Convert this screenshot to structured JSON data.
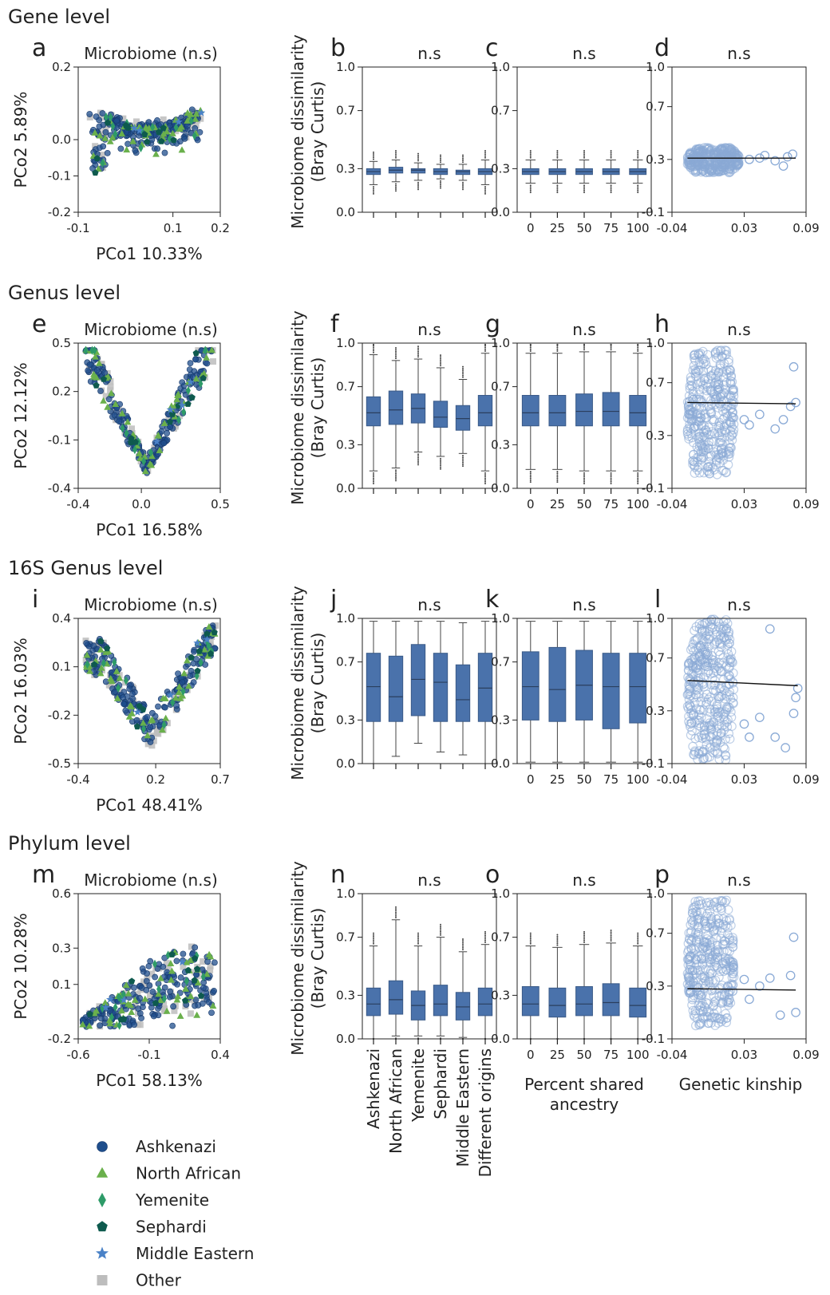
{
  "colors": {
    "Ashkenazi": "#1f4e8c",
    "North African": "#6ab04c",
    "Yemenite": "#2e9b68",
    "Sephardi": "#0e5a4e",
    "Middle Eastern": "#4a82c7",
    "Other": "#bdbdbd",
    "box": "#4a72ab",
    "kinship_point": "#8aaad6"
  },
  "legend": {
    "entries": [
      {
        "label": "Ashkenazi",
        "marker": "circle"
      },
      {
        "label": "North African",
        "marker": "triangle"
      },
      {
        "label": "Yemenite",
        "marker": "diamond"
      },
      {
        "label": "Sephardi",
        "marker": "pentagon"
      },
      {
        "label": "Middle Eastern",
        "marker": "star"
      },
      {
        "label": "Other",
        "marker": "square"
      }
    ]
  },
  "shared": {
    "ylabel_line1": "Microbiome dissimilarity",
    "ylabel_line2": "(Bray Curtis)",
    "origin_categories": [
      "Ashkenazi",
      "North African",
      "Yemenite",
      "Sephardi",
      "Middle Eastern",
      "Different origins"
    ],
    "ancestry_categories": [
      "0",
      "25",
      "50",
      "75",
      "100"
    ],
    "ancestry_xlabel_line1": "Percent shared",
    "ancestry_xlabel_line2": "ancestry",
    "kinship_xlabel": "Genetic kinship"
  },
  "chart_data": [
    {
      "row_title": "Gene level",
      "pcoa": {
        "type": "scatter",
        "label": "a",
        "title": "Microbiome (n.s)",
        "xlabel": "PCo1 10.33%",
        "ylabel": "PCo2 5.89%",
        "xlim": [
          -0.1,
          0.2
        ],
        "ylim": [
          -0.2,
          0.2
        ],
        "xticks": [
          "-0.1",
          "0.1",
          "0.2"
        ],
        "xtick_values": [
          -0.1,
          0.1,
          0.2
        ],
        "yticks": [
          "-0.2",
          "-0.1",
          "0.0",
          "0.2"
        ],
        "ytick_values": [
          -0.2,
          -0.1,
          0.0,
          0.2
        ],
        "shape": "gene"
      },
      "origin": {
        "type": "box",
        "label": "b",
        "title": "n.s",
        "ylim": [
          0.0,
          1.0
        ],
        "yticks": [
          "0.0",
          "0.3",
          "0.7",
          "1.0"
        ],
        "ytick_values": [
          0.0,
          0.3,
          0.7,
          1.0
        ],
        "boxes": [
          {
            "q1": 0.26,
            "med": 0.28,
            "q3": 0.3,
            "lo": 0.19,
            "hi": 0.35
          },
          {
            "q1": 0.27,
            "med": 0.29,
            "q3": 0.31,
            "lo": 0.21,
            "hi": 0.36
          },
          {
            "q1": 0.27,
            "med": 0.29,
            "q3": 0.3,
            "lo": 0.22,
            "hi": 0.34
          },
          {
            "q1": 0.26,
            "med": 0.28,
            "q3": 0.3,
            "lo": 0.23,
            "hi": 0.33
          },
          {
            "q1": 0.26,
            "med": 0.28,
            "q3": 0.29,
            "lo": 0.22,
            "hi": 0.33
          },
          {
            "q1": 0.26,
            "med": 0.28,
            "q3": 0.3,
            "lo": 0.19,
            "hi": 0.36
          }
        ]
      },
      "ancestry": {
        "type": "box",
        "label": "c",
        "title": "n.s",
        "ylim": [
          0.0,
          1.0
        ],
        "yticks": [
          "0.0",
          "0.3",
          "0.7",
          "1.0"
        ],
        "ytick_values": [
          0.0,
          0.3,
          0.7,
          1.0
        ],
        "boxes": [
          {
            "q1": 0.26,
            "med": 0.28,
            "q3": 0.3,
            "lo": 0.2,
            "hi": 0.36
          },
          {
            "q1": 0.26,
            "med": 0.28,
            "q3": 0.3,
            "lo": 0.2,
            "hi": 0.36
          },
          {
            "q1": 0.26,
            "med": 0.28,
            "q3": 0.3,
            "lo": 0.2,
            "hi": 0.36
          },
          {
            "q1": 0.26,
            "med": 0.28,
            "q3": 0.3,
            "lo": 0.2,
            "hi": 0.36
          },
          {
            "q1": 0.26,
            "med": 0.28,
            "q3": 0.3,
            "lo": 0.2,
            "hi": 0.36
          }
        ]
      },
      "kinship": {
        "type": "scatter",
        "label": "d",
        "title": "n.s",
        "xlim": [
          -0.04,
          0.09
        ],
        "ylim": [
          -0.1,
          1.0
        ],
        "xticks": [
          "-0.04",
          "0.03",
          "0.09"
        ],
        "xtick_values": [
          -0.04,
          0.03,
          0.09
        ],
        "yticks": [
          "-0.1",
          "0.3",
          "0.7",
          "1.0"
        ],
        "ytick_values": [
          -0.1,
          0.3,
          0.7,
          1.0
        ],
        "cloud": {
          "x": [
            -0.025,
            0.025
          ],
          "y": [
            0.2,
            0.39
          ]
        },
        "outliers": [
          [
            0.035,
            0.3
          ],
          [
            0.045,
            0.31
          ],
          [
            0.05,
            0.33
          ],
          [
            0.06,
            0.29
          ],
          [
            0.068,
            0.25
          ],
          [
            0.072,
            0.32
          ],
          [
            0.077,
            0.34
          ]
        ],
        "fit": [
          [
            -0.025,
            0.31
          ],
          [
            0.08,
            0.31
          ]
        ]
      }
    },
    {
      "row_title": "Genus level",
      "pcoa": {
        "type": "scatter",
        "label": "e",
        "title": "Microbiome (n.s)",
        "xlabel": "PCo1 16.58%",
        "ylabel": "PCo2 12.12%",
        "xlim": [
          -0.4,
          0.5
        ],
        "ylim": [
          -0.4,
          0.5
        ],
        "xticks": [
          "-0.4",
          "0.0",
          "0.5"
        ],
        "xtick_values": [
          -0.4,
          0.0,
          0.5
        ],
        "yticks": [
          "-0.4",
          "-0.1",
          "0.2",
          "0.5"
        ],
        "ytick_values": [
          -0.4,
          -0.1,
          0.2,
          0.5
        ],
        "shape": "v"
      },
      "origin": {
        "type": "box",
        "label": "f",
        "title": "n.s",
        "ylim": [
          0.0,
          1.0
        ],
        "yticks": [
          "0.0",
          "0.3",
          "0.7",
          "1.0"
        ],
        "ytick_values": [
          0.0,
          0.3,
          0.7,
          1.0
        ],
        "boxes": [
          {
            "q1": 0.43,
            "med": 0.52,
            "q3": 0.63,
            "lo": 0.12,
            "hi": 0.92
          },
          {
            "q1": 0.44,
            "med": 0.54,
            "q3": 0.67,
            "lo": 0.14,
            "hi": 0.88
          },
          {
            "q1": 0.45,
            "med": 0.55,
            "q3": 0.65,
            "lo": 0.25,
            "hi": 0.89
          },
          {
            "q1": 0.42,
            "med": 0.49,
            "q3": 0.6,
            "lo": 0.22,
            "hi": 0.83
          },
          {
            "q1": 0.4,
            "med": 0.48,
            "q3": 0.57,
            "lo": 0.24,
            "hi": 0.75
          },
          {
            "q1": 0.43,
            "med": 0.52,
            "q3": 0.64,
            "lo": 0.12,
            "hi": 0.93
          }
        ]
      },
      "ancestry": {
        "type": "box",
        "label": "g",
        "title": "n.s",
        "ylim": [
          0.0,
          1.0
        ],
        "yticks": [
          "0.0",
          "0.3",
          "0.7",
          "1.0"
        ],
        "ytick_values": [
          0.0,
          0.3,
          0.7,
          1.0
        ],
        "boxes": [
          {
            "q1": 0.43,
            "med": 0.52,
            "q3": 0.64,
            "lo": 0.13,
            "hi": 0.93
          },
          {
            "q1": 0.43,
            "med": 0.52,
            "q3": 0.64,
            "lo": 0.13,
            "hi": 0.93
          },
          {
            "q1": 0.43,
            "med": 0.53,
            "q3": 0.65,
            "lo": 0.12,
            "hi": 0.94
          },
          {
            "q1": 0.43,
            "med": 0.53,
            "q3": 0.66,
            "lo": 0.12,
            "hi": 0.94
          },
          {
            "q1": 0.43,
            "med": 0.52,
            "q3": 0.64,
            "lo": 0.12,
            "hi": 0.93
          }
        ]
      },
      "kinship": {
        "type": "scatter",
        "label": "h",
        "title": "n.s",
        "xlim": [
          -0.04,
          0.09
        ],
        "ylim": [
          -0.1,
          1.0
        ],
        "xticks": [
          "-0.04",
          "0.03",
          "0.09"
        ],
        "xtick_values": [
          -0.04,
          0.03,
          0.09
        ],
        "yticks": [
          "-0.1",
          "0.3",
          "0.7",
          "1.0"
        ],
        "ytick_values": [
          -0.1,
          0.3,
          0.7,
          1.0
        ],
        "cloud": {
          "x": [
            -0.025,
            0.02
          ],
          "y": [
            0.0,
            0.95
          ]
        },
        "outliers": [
          [
            0.03,
            0.42
          ],
          [
            0.035,
            0.38
          ],
          [
            0.045,
            0.46
          ],
          [
            0.06,
            0.35
          ],
          [
            0.068,
            0.42
          ],
          [
            0.075,
            0.52
          ],
          [
            0.078,
            0.82
          ],
          [
            0.08,
            0.55
          ]
        ],
        "fit": [
          [
            -0.025,
            0.55
          ],
          [
            0.08,
            0.54
          ]
        ]
      }
    },
    {
      "row_title": "16S Genus level",
      "pcoa": {
        "type": "scatter",
        "label": "i",
        "title": "Microbiome (n.s)",
        "xlabel": "PCo1 48.41%",
        "ylabel": "PCo2 16.03%",
        "xlim": [
          -0.4,
          0.7
        ],
        "ylim": [
          -0.5,
          0.4
        ],
        "xticks": [
          "-0.4",
          "0.2",
          "0.7"
        ],
        "xtick_values": [
          -0.4,
          0.2,
          0.7
        ],
        "yticks": [
          "-0.5",
          "-0.2",
          "0.1",
          "0.4"
        ],
        "ytick_values": [
          -0.5,
          -0.2,
          0.1,
          0.4
        ],
        "shape": "wide_v"
      },
      "origin": {
        "type": "box",
        "label": "j",
        "title": "n.s",
        "ylim": [
          0.0,
          1.0
        ],
        "yticks": [
          "0.0",
          "0.3",
          "0.7",
          "1.0"
        ],
        "ytick_values": [
          0.0,
          0.3,
          0.7,
          1.0
        ],
        "boxes": [
          {
            "q1": 0.29,
            "med": 0.53,
            "q3": 0.76,
            "lo": 0.0,
            "hi": 0.98
          },
          {
            "q1": 0.29,
            "med": 0.46,
            "q3": 0.74,
            "lo": 0.05,
            "hi": 0.98
          },
          {
            "q1": 0.33,
            "med": 0.58,
            "q3": 0.82,
            "lo": 0.14,
            "hi": 0.98
          },
          {
            "q1": 0.29,
            "med": 0.56,
            "q3": 0.76,
            "lo": 0.08,
            "hi": 0.98
          },
          {
            "q1": 0.29,
            "med": 0.44,
            "q3": 0.68,
            "lo": 0.06,
            "hi": 0.97
          },
          {
            "q1": 0.29,
            "med": 0.52,
            "q3": 0.76,
            "lo": 0.0,
            "hi": 0.98
          }
        ]
      },
      "ancestry": {
        "type": "box",
        "label": "k",
        "title": "n.s",
        "ylim": [
          0.0,
          1.0
        ],
        "yticks": [
          "0.0",
          "0.3",
          "0.7",
          "1.0"
        ],
        "ytick_values": [
          0.0,
          0.3,
          0.7,
          1.0
        ],
        "boxes": [
          {
            "q1": 0.3,
            "med": 0.53,
            "q3": 0.77,
            "lo": 0.01,
            "hi": 0.98
          },
          {
            "q1": 0.29,
            "med": 0.51,
            "q3": 0.8,
            "lo": 0.01,
            "hi": 0.98
          },
          {
            "q1": 0.3,
            "med": 0.54,
            "q3": 0.78,
            "lo": 0.01,
            "hi": 0.98
          },
          {
            "q1": 0.24,
            "med": 0.53,
            "q3": 0.76,
            "lo": 0.01,
            "hi": 0.98
          },
          {
            "q1": 0.28,
            "med": 0.53,
            "q3": 0.76,
            "lo": 0.01,
            "hi": 0.98
          }
        ]
      },
      "kinship": {
        "type": "scatter",
        "label": "l",
        "title": "n.s",
        "xlim": [
          -0.04,
          0.09
        ],
        "ylim": [
          -0.1,
          1.0
        ],
        "xticks": [
          "-0.04",
          "0.03",
          "0.09"
        ],
        "xtick_values": [
          -0.04,
          0.03,
          0.09
        ],
        "yticks": [
          "-0.1",
          "0.3",
          "0.7",
          "1.0"
        ],
        "ytick_values": [
          -0.1,
          0.3,
          0.7,
          1.0
        ],
        "cloud": {
          "x": [
            -0.025,
            0.02
          ],
          "y": [
            -0.08,
            1.0
          ]
        },
        "outliers": [
          [
            0.03,
            0.2
          ],
          [
            0.035,
            0.1
          ],
          [
            0.045,
            0.25
          ],
          [
            0.055,
            0.92
          ],
          [
            0.06,
            0.1
          ],
          [
            0.07,
            0.02
          ],
          [
            0.078,
            0.28
          ],
          [
            0.08,
            0.4
          ],
          [
            0.082,
            0.47
          ]
        ],
        "fit": [
          [
            -0.025,
            0.53
          ],
          [
            0.082,
            0.49
          ]
        ]
      }
    },
    {
      "row_title": "Phylum level",
      "pcoa": {
        "type": "scatter",
        "label": "m",
        "title": "Microbiome (n.s)",
        "xlabel": "PCo1 58.13%",
        "ylabel": "PCo2 10.28%",
        "xlim": [
          -0.6,
          0.4
        ],
        "ylim": [
          -0.2,
          0.6
        ],
        "xticks": [
          "-0.6",
          "-0.1",
          "0.4"
        ],
        "xtick_values": [
          -0.6,
          -0.1,
          0.4
        ],
        "yticks": [
          "-0.2",
          "0.1",
          "0.3",
          "0.6"
        ],
        "ytick_values": [
          -0.2,
          0.1,
          0.3,
          0.6
        ],
        "shape": "arc"
      },
      "origin": {
        "type": "box",
        "label": "n",
        "title": "n.s",
        "ylim": [
          0.0,
          1.0
        ],
        "yticks": [
          "0.0",
          "0.3",
          "0.7",
          "1.0"
        ],
        "ytick_values": [
          0.0,
          0.3,
          0.7,
          1.0
        ],
        "boxes": [
          {
            "q1": 0.16,
            "med": 0.24,
            "q3": 0.35,
            "lo": 0.0,
            "hi": 0.64
          },
          {
            "q1": 0.17,
            "med": 0.27,
            "q3": 0.4,
            "lo": 0.02,
            "hi": 0.82
          },
          {
            "q1": 0.13,
            "med": 0.23,
            "q3": 0.33,
            "lo": 0.02,
            "hi": 0.64
          },
          {
            "q1": 0.16,
            "med": 0.24,
            "q3": 0.37,
            "lo": 0.02,
            "hi": 0.7
          },
          {
            "q1": 0.13,
            "med": 0.22,
            "q3": 0.32,
            "lo": 0.01,
            "hi": 0.6
          },
          {
            "q1": 0.16,
            "med": 0.24,
            "q3": 0.35,
            "lo": 0.0,
            "hi": 0.65
          }
        ]
      },
      "ancestry": {
        "type": "box",
        "label": "o",
        "title": "n.s",
        "ylim": [
          0.0,
          1.0
        ],
        "yticks": [
          "0.0",
          "0.3",
          "0.7",
          "1.0"
        ],
        "ytick_values": [
          0.0,
          0.3,
          0.7,
          1.0
        ],
        "boxes": [
          {
            "q1": 0.16,
            "med": 0.24,
            "q3": 0.36,
            "lo": 0.0,
            "hi": 0.64
          },
          {
            "q1": 0.15,
            "med": 0.23,
            "q3": 0.35,
            "lo": 0.0,
            "hi": 0.63
          },
          {
            "q1": 0.16,
            "med": 0.24,
            "q3": 0.36,
            "lo": 0.0,
            "hi": 0.65
          },
          {
            "q1": 0.16,
            "med": 0.25,
            "q3": 0.38,
            "lo": 0.0,
            "hi": 0.66
          },
          {
            "q1": 0.15,
            "med": 0.23,
            "q3": 0.35,
            "lo": 0.0,
            "hi": 0.64
          }
        ]
      },
      "kinship": {
        "type": "scatter",
        "label": "p",
        "title": "n.s",
        "xlim": [
          -0.04,
          0.09
        ],
        "ylim": [
          -0.1,
          1.0
        ],
        "xticks": [
          "-0.04",
          "0.03",
          "0.09"
        ],
        "xtick_values": [
          -0.04,
          0.03,
          0.09
        ],
        "yticks": [
          "-0.1",
          "0.3",
          "0.7",
          "1.0"
        ],
        "ytick_values": [
          -0.1,
          0.3,
          0.7,
          1.0
        ],
        "cloud": {
          "x": [
            -0.025,
            0.02
          ],
          "y": [
            0.0,
            0.95
          ]
        },
        "outliers": [
          [
            0.03,
            0.35
          ],
          [
            0.035,
            0.2
          ],
          [
            0.045,
            0.3
          ],
          [
            0.055,
            0.36
          ],
          [
            0.065,
            0.08
          ],
          [
            0.075,
            0.38
          ],
          [
            0.078,
            0.67
          ],
          [
            0.08,
            0.1
          ]
        ],
        "fit": [
          [
            -0.025,
            0.28
          ],
          [
            0.08,
            0.27
          ]
        ]
      }
    }
  ]
}
